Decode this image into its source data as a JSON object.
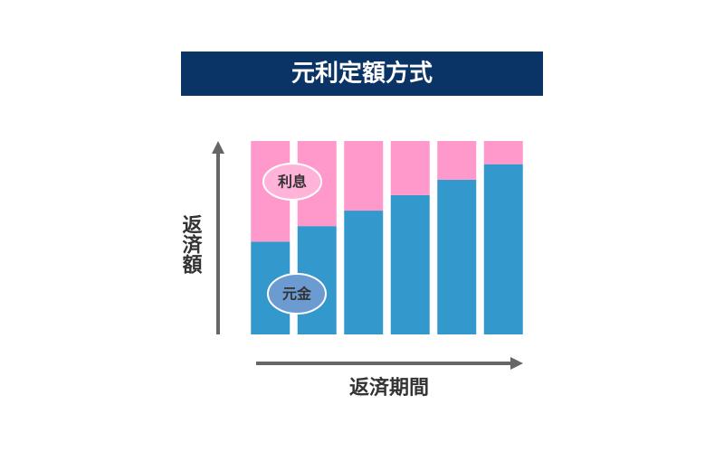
{
  "chart_data": {
    "type": "stacked_bar",
    "title": "元利定額方式",
    "x_label": "返済期間",
    "y_label": "返済額",
    "categories": [
      null,
      null,
      null,
      null,
      null,
      null
    ],
    "series": [
      {
        "name": "元金",
        "color": "#3399cc",
        "values": [
          48,
          56,
          64,
          72,
          80,
          88
        ]
      },
      {
        "name": "利息",
        "color": "#ff99cc",
        "values": [
          52,
          44,
          36,
          28,
          20,
          12
        ]
      }
    ],
    "ylim": [
      0,
      100
    ]
  }
}
